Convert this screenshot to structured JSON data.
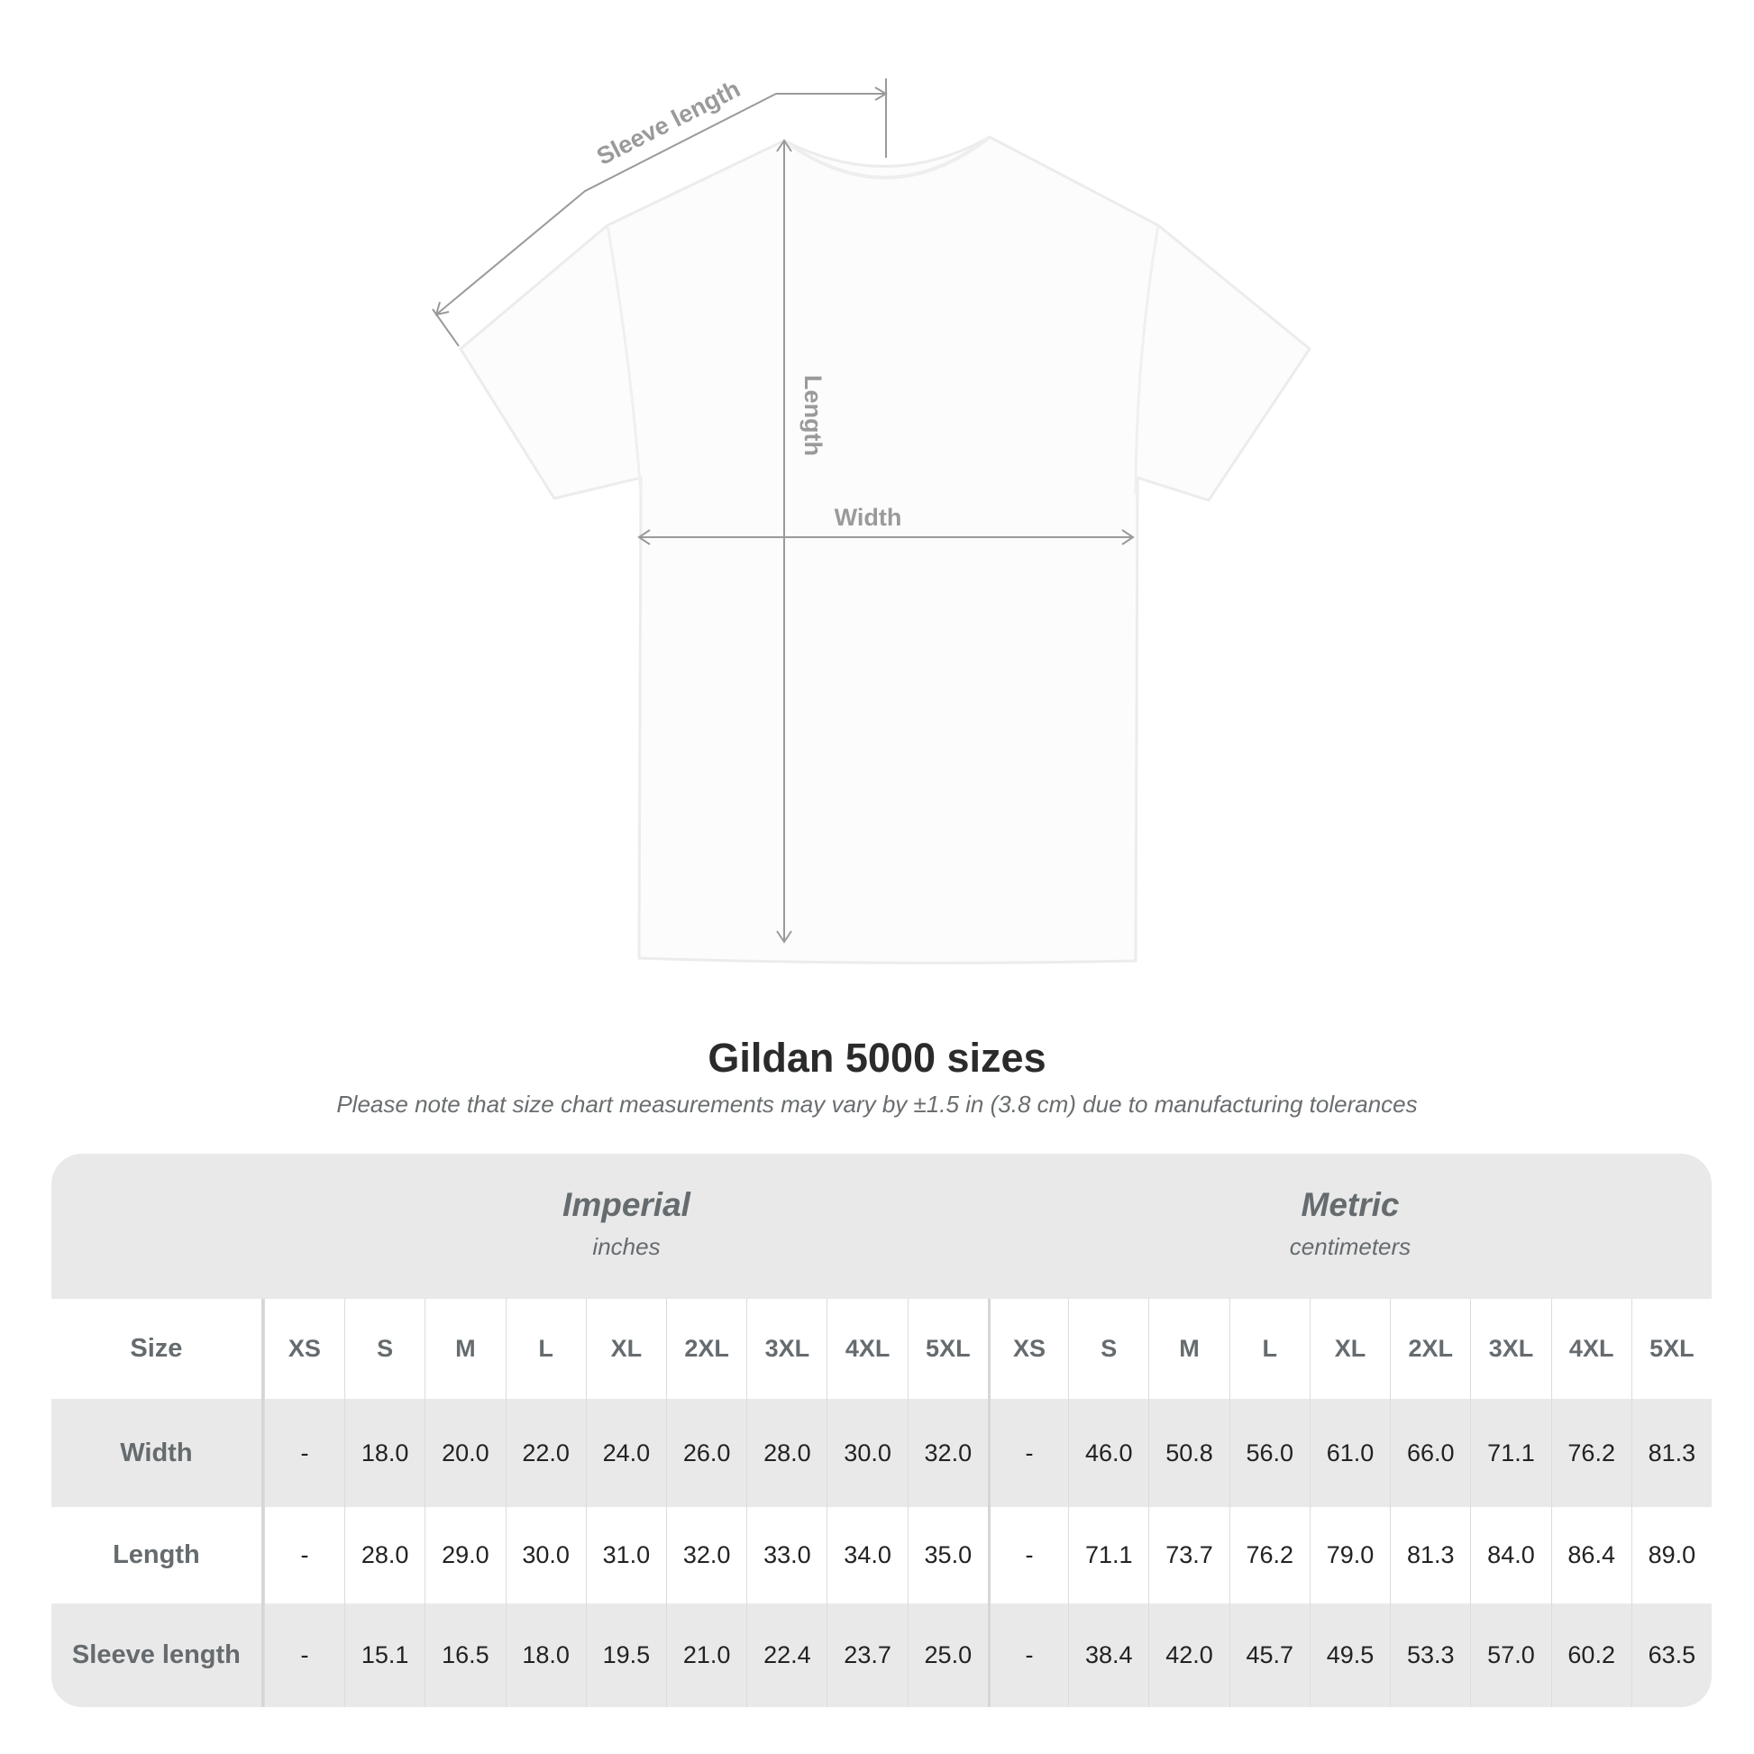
{
  "diagram": {
    "labels": {
      "sleeve": "Sleeve length",
      "length": "Length",
      "width": "Width"
    }
  },
  "title": "Gildan 5000 sizes",
  "note": "Please note that size chart measurements may vary by ±1.5 in (3.8 cm) due to manufacturing tolerances",
  "table": {
    "imperial": {
      "name": "Imperial",
      "unit": "inches"
    },
    "metric": {
      "name": "Metric",
      "unit": "centimeters"
    },
    "size_label": "Size",
    "sizes": [
      "XS",
      "S",
      "M",
      "L",
      "XL",
      "2XL",
      "3XL",
      "4XL",
      "5XL"
    ],
    "rows": [
      {
        "label": "Width",
        "imperial": [
          "-",
          "18.0",
          "20.0",
          "22.0",
          "24.0",
          "26.0",
          "28.0",
          "30.0",
          "32.0"
        ],
        "metric": [
          "-",
          "46.0",
          "50.8",
          "56.0",
          "61.0",
          "66.0",
          "71.1",
          "76.2",
          "81.3"
        ]
      },
      {
        "label": "Length",
        "imperial": [
          "-",
          "28.0",
          "29.0",
          "30.0",
          "31.0",
          "32.0",
          "33.0",
          "34.0",
          "35.0"
        ],
        "metric": [
          "-",
          "71.1",
          "73.7",
          "76.2",
          "79.0",
          "81.3",
          "84.0",
          "86.4",
          "89.0"
        ]
      },
      {
        "label": "Sleeve length",
        "imperial": [
          "-",
          "15.1",
          "16.5",
          "18.0",
          "19.5",
          "21.0",
          "22.4",
          "23.7",
          "25.0"
        ],
        "metric": [
          "-",
          "38.4",
          "42.0",
          "45.7",
          "49.5",
          "53.3",
          "57.0",
          "60.2",
          "63.5"
        ]
      }
    ]
  },
  "colors": {
    "band": "#e9e9e9",
    "label": "#656b6e",
    "measure_line": "#9a9a9a"
  }
}
